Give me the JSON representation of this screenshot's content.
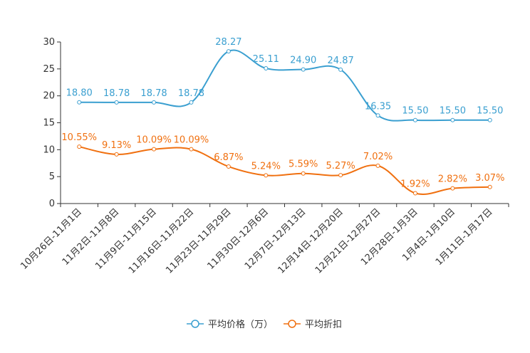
{
  "chart_data": {
    "type": "line",
    "categories": [
      "10月26日-11月1日",
      "11月2日-11月8日",
      "11月9日-11月15日",
      "11月16日-11月22日",
      "11月23日-11月29日",
      "11月30日-12月6日",
      "12月7日-12月13日",
      "12月14日-12月20日",
      "12月21日-12月27日",
      "12月28日-1月3日",
      "1月4日-1月10日",
      "1月11日-1月17日"
    ],
    "yticks": [
      "0",
      "5",
      "10",
      "15",
      "20",
      "25",
      "30"
    ],
    "ylim": [
      0,
      30
    ],
    "series": [
      {
        "name": "平均价格（万）",
        "color": "#3a9fd0",
        "values": [
          18.8,
          18.78,
          18.78,
          18.78,
          28.27,
          25.11,
          24.9,
          24.87,
          16.35,
          15.5,
          15.5,
          15.5
        ],
        "labels": [
          "18.80",
          "18.78",
          "18.78",
          "18.78",
          "28.27",
          "25.11",
          "24.90",
          "24.87",
          "16.35",
          "15.50",
          "15.50",
          "15.50"
        ]
      },
      {
        "name": "平均折扣",
        "color": "#f07010",
        "values": [
          10.55,
          9.13,
          10.09,
          10.09,
          6.87,
          5.24,
          5.59,
          5.27,
          7.02,
          1.92,
          2.82,
          3.07
        ],
        "labels": [
          "10.55%",
          "9.13%",
          "10.09%",
          "10.09%",
          "6.87%",
          "5.24%",
          "5.59%",
          "5.27%",
          "7.02%",
          "1.92%",
          "2.82%",
          "3.07%"
        ]
      }
    ],
    "legend": [
      "平均价格（万）",
      "平均折扣"
    ]
  }
}
